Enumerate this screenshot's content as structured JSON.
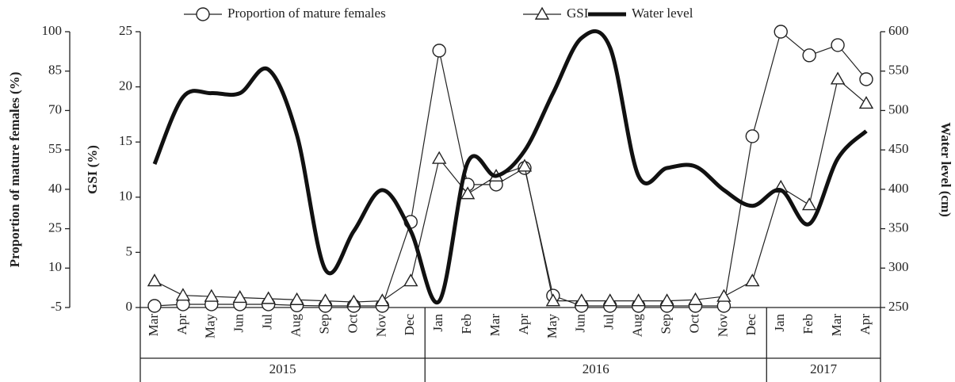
{
  "chart_data": {
    "type": "line",
    "categories": [
      "Mar",
      "Apr",
      "May",
      "Jun",
      "Jul",
      "Aug",
      "Sep",
      "Oct",
      "Nov",
      "Dec",
      "Jan",
      "Feb",
      "Mar",
      "Apr",
      "May",
      "Jun",
      "Jul",
      "Aug",
      "Sep",
      "Oct",
      "Nov",
      "Dec",
      "Jan",
      "Feb",
      "Mar",
      "Apr"
    ],
    "x_groups": [
      "2015",
      "2016",
      "2017"
    ],
    "ylabel": "Proportion of mature females (%)",
    "ylim": [
      -5,
      100
    ],
    "yticks": [
      -5,
      10,
      25,
      40,
      55,
      70,
      85,
      100
    ],
    "y2label": "GSI (%)",
    "y2lim": [
      0,
      25
    ],
    "y2ticks": [
      0,
      5,
      10,
      15,
      20,
      25
    ],
    "y3label": "Water level (cm)",
    "y3lim": [
      250,
      600
    ],
    "y3ticks": [
      250,
      300,
      350,
      400,
      450,
      500,
      550,
      600
    ],
    "series": [
      {
        "name": "Proportion of mature females",
        "color": "#222222",
        "marker": "circle",
        "axis": "y",
        "values": [
          -4.4,
          -3.8,
          -3.8,
          -3.8,
          -3.8,
          -4.2,
          -4.4,
          -4.4,
          -4.4,
          27.6,
          92.8,
          41.8,
          41.8,
          48.1,
          -0.5,
          -4.4,
          -4.4,
          -4.4,
          -4.4,
          -4.4,
          -4.4,
          60.2,
          100,
          91,
          94.9,
          81.9
        ]
      },
      {
        "name": "GSI",
        "color": "#222222",
        "marker": "triangle",
        "axis": "y2",
        "values": [
          2.4,
          1.1,
          1.0,
          0.9,
          0.8,
          0.7,
          0.6,
          0.5,
          0.6,
          2.4,
          13.5,
          10.3,
          11.9,
          12.8,
          0.6,
          0.6,
          0.6,
          0.6,
          0.6,
          0.7,
          1.0,
          2.4,
          10.9,
          9.3,
          20.7,
          18.5
        ]
      },
      {
        "name": "Water level",
        "color": "#111111",
        "marker": "none",
        "axis": "y3",
        "values": [
          432,
          517,
          522,
          522,
          552,
          469,
          298,
          347,
          399,
          347,
          258,
          434,
          417,
          449,
          522,
          592,
          580,
          417,
          427,
          429,
          399,
          379,
          399,
          356,
          439,
          474
        ]
      }
    ]
  }
}
